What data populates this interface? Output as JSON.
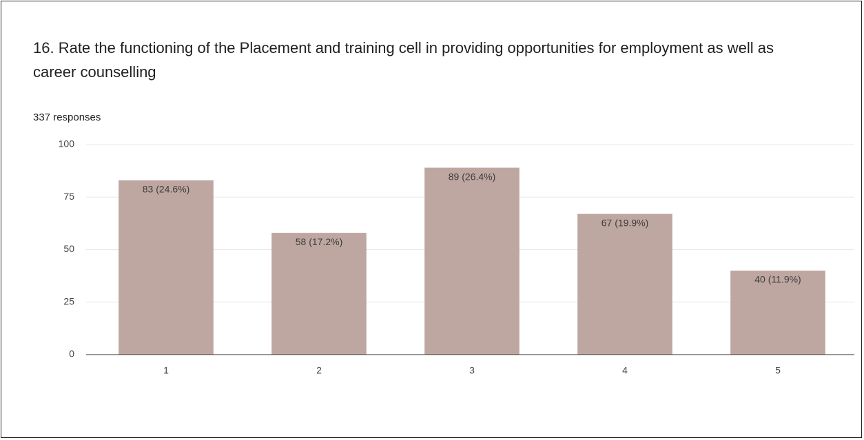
{
  "chart_data": {
    "type": "bar",
    "title": "16. Rate the functioning of the Placement and training cell in providing opportunities for employment as well as career counselling",
    "subtitle": "337 responses",
    "categories": [
      "1",
      "2",
      "3",
      "4",
      "5"
    ],
    "values": [
      83,
      58,
      89,
      67,
      40
    ],
    "value_labels": [
      "83 (24.6%)",
      "58 (17.2%)",
      "89 (26.4%)",
      "67 (19.9%)",
      "40 (11.9%)"
    ],
    "color": "#bfa7a1",
    "ylim": [
      0,
      100
    ],
    "yticks": [
      0,
      25,
      50,
      75,
      100
    ],
    "grid": true
  }
}
